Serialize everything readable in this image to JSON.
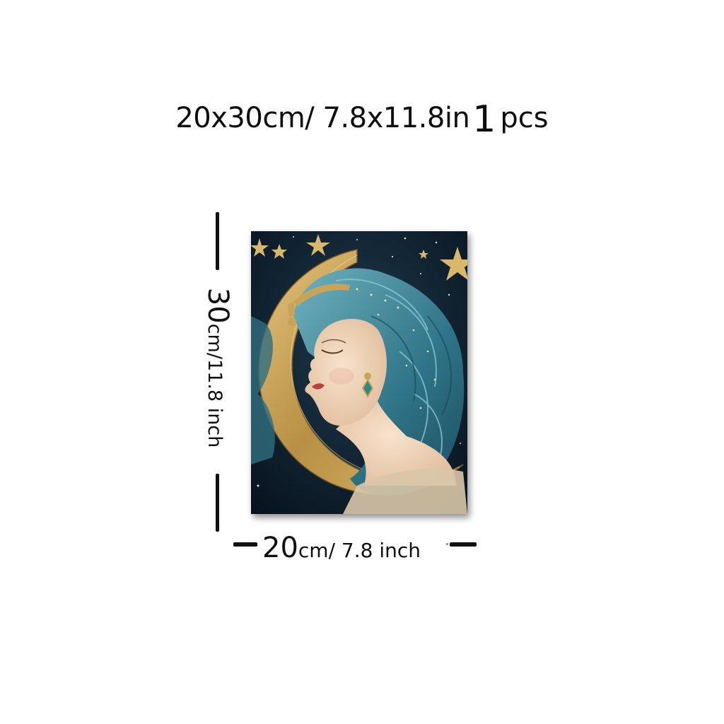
{
  "headline": {
    "dimensions": "20x30cm/ 7.8x11.8in",
    "quantity": "1",
    "quantity_unit": "pcs"
  },
  "height_label": {
    "value": "30",
    "unit": "cm/11.8 inch"
  },
  "width_label": {
    "value": "20",
    "unit": "cm/ 7.8 inch"
  },
  "artwork": {
    "subject": "moon-goddess-portrait",
    "colors": {
      "night_sky": "#0b1a2a",
      "hair_teal": "#3f8a9c",
      "moon_gold": "#c8a45a",
      "skin": "#f1d6bc",
      "lips": "#b8443e"
    }
  }
}
